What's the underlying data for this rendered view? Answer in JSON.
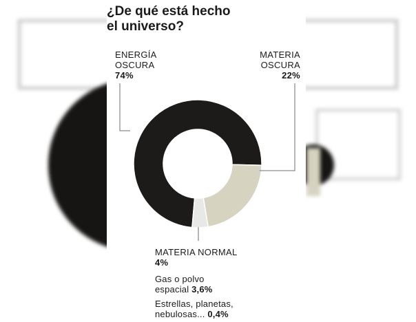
{
  "title_lines": [
    "¿De qué está hecho",
    "el universo?"
  ],
  "colors": {
    "energia_oscura": "#1c1b19",
    "materia_oscura": "#d6d3c0",
    "materia_normal": "#e8e8e6",
    "leader": "#6f6f6f",
    "background_ring": "#161513",
    "background_frame": "#cfcfcf"
  },
  "labels": {
    "energia": {
      "line1": "ENERGÍA",
      "line2": "OSCURA",
      "value": "74%"
    },
    "materia_oscura": {
      "line1": "MATERIA",
      "line2": "OSCURA",
      "value": "22%"
    },
    "materia_normal": {
      "line1": "MATERIA NORMAL",
      "value": "4%",
      "gas_line1": "Gas o polvo",
      "gas_line2": "espacial",
      "gas_value": "3,6%",
      "stars_line1": "Estrellas, planetas,",
      "stars_line2": "nebulosas...",
      "stars_value": "0,4%"
    }
  },
  "chart_data": {
    "type": "pie",
    "donut": true,
    "title": "¿De qué está hecho el universo?",
    "slices": [
      {
        "name": "ENERGÍA OSCURA",
        "value": 74
      },
      {
        "name": "MATERIA OSCURA",
        "value": 22
      },
      {
        "name": "MATERIA NORMAL",
        "value": 4,
        "breakdown": [
          {
            "name": "Gas o polvo espacial",
            "value": 3.6
          },
          {
            "name": "Estrellas, planetas, nebulosas...",
            "value": 0.4
          }
        ]
      }
    ]
  }
}
